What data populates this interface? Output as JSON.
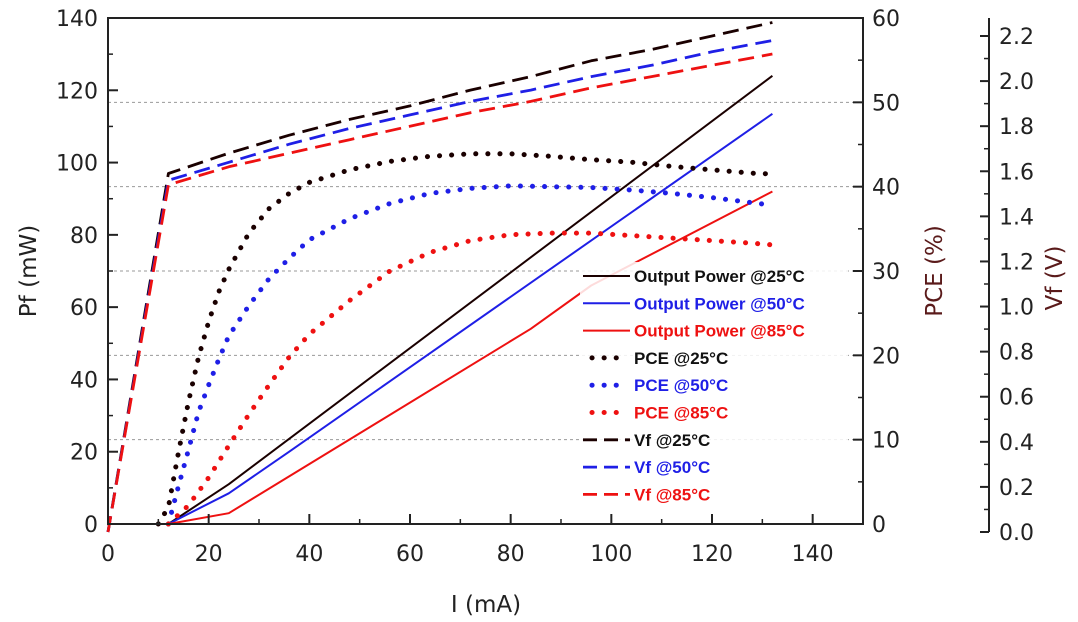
{
  "chart_data": {
    "type": "line",
    "title": "",
    "xlabel": "I (mA)",
    "ylabel": "Pf (mW)",
    "y2label": "PCE (%)",
    "y3label": "Vf (V)",
    "xlim": [
      0,
      150
    ],
    "ylim": [
      0,
      140
    ],
    "y2lim": [
      0,
      60
    ],
    "y3lim": [
      0,
      2.3
    ],
    "x_ticks": [
      0,
      20,
      40,
      60,
      80,
      100,
      120,
      140
    ],
    "y_ticks": [
      0,
      20,
      40,
      60,
      80,
      100,
      120,
      140
    ],
    "y2_ticks": [
      0,
      10,
      20,
      30,
      40,
      50,
      60
    ],
    "y3_ticks": [
      "0.0",
      "0.2",
      "0.4",
      "0.6",
      "0.8",
      "1.0",
      "1.2",
      "1.4",
      "1.6",
      "1.8",
      "2.0",
      "2.2"
    ],
    "grid": "horizontal dotted at right-axis ticks",
    "legend_position": "center-right",
    "colors": {
      "c25": "#1a0000",
      "c50": "#1f1fe6",
      "c85": "#ee1111"
    },
    "series": [
      {
        "name": "Output Power @25°C",
        "axis": "left",
        "style": "solid",
        "color": "#1a0000",
        "x": [
          12,
          24,
          132
        ],
        "y": [
          0,
          11,
          124
        ]
      },
      {
        "name": "Output Power @50°C",
        "axis": "left",
        "style": "solid",
        "color": "#1f1fe6",
        "x": [
          12,
          24,
          36,
          132
        ],
        "y": [
          0,
          8.5,
          20,
          113.5
        ]
      },
      {
        "name": "Output Power @85°C",
        "axis": "left",
        "style": "solid",
        "color": "#ee1111",
        "x": [
          12,
          24,
          84,
          96,
          132
        ],
        "y": [
          0,
          3,
          54,
          66,
          92
        ]
      },
      {
        "name": "PCE @25°C",
        "axis": "right",
        "style": "dotted",
        "color": "#1a0000",
        "x": [
          10,
          12,
          14,
          16,
          18,
          20,
          22,
          24,
          28,
          32,
          36,
          40,
          48,
          56,
          64,
          72,
          80,
          88,
          96,
          104,
          112,
          120,
          128,
          132
        ],
        "y": [
          0,
          2,
          8.5,
          14.5,
          19.8,
          24,
          27.5,
          30.2,
          34.5,
          37.4,
          39.2,
          40.5,
          42,
          43,
          43.6,
          43.9,
          43.9,
          43.6,
          43.2,
          42.9,
          42.4,
          42,
          41.6,
          41.5
        ]
      },
      {
        "name": "PCE @50°C",
        "axis": "right",
        "style": "dotted",
        "color": "#1f1fe6",
        "x": [
          12,
          14,
          16,
          18,
          20,
          22,
          24,
          28,
          32,
          36,
          40,
          48,
          56,
          64,
          72,
          80,
          88,
          96,
          104,
          112,
          120,
          128,
          132
        ],
        "y": [
          0,
          4.5,
          8.8,
          13.3,
          16.5,
          19.5,
          22.3,
          25.9,
          29.1,
          31.5,
          33.7,
          36.2,
          38,
          39.2,
          39.8,
          40.1,
          40,
          39.9,
          39.6,
          39.2,
          38.7,
          38.1,
          37.8
        ]
      },
      {
        "name": "PCE @85°C",
        "axis": "right",
        "style": "dotted",
        "color": "#ee1111",
        "x": [
          12,
          16,
          20,
          24,
          28,
          32,
          36,
          40,
          48,
          56,
          64,
          72,
          80,
          88,
          96,
          104,
          112,
          120,
          128,
          132
        ],
        "y": [
          0,
          2.2,
          5.5,
          9.3,
          13,
          16.5,
          19.8,
          22.5,
          26.5,
          30,
          32.2,
          33.6,
          34.3,
          34.5,
          34.5,
          34.2,
          33.9,
          33.6,
          33.3,
          33.1
        ]
      },
      {
        "name": "Vf @25°C",
        "axis": "third",
        "style": "dashed",
        "color": "#1a0000",
        "x": [
          0,
          12,
          24,
          36,
          48,
          60,
          72,
          84,
          96,
          108,
          120,
          132
        ],
        "y": [
          0,
          1.59,
          1.68,
          1.76,
          1.83,
          1.89,
          1.96,
          2.02,
          2.09,
          2.14,
          2.2,
          2.26
        ]
      },
      {
        "name": "Vf @50°C",
        "axis": "third",
        "style": "dashed",
        "color": "#1f1fe6",
        "x": [
          0,
          12,
          24,
          36,
          48,
          60,
          72,
          84,
          96,
          108,
          120,
          132
        ],
        "y": [
          0,
          1.56,
          1.64,
          1.72,
          1.79,
          1.85,
          1.91,
          1.96,
          2.02,
          2.07,
          2.13,
          2.18
        ]
      },
      {
        "name": "Vf @85°C",
        "axis": "third",
        "style": "dashed",
        "color": "#ee1111",
        "x": [
          0,
          12,
          24,
          36,
          48,
          60,
          72,
          84,
          96,
          108,
          120,
          132
        ],
        "y": [
          0,
          1.54,
          1.62,
          1.68,
          1.74,
          1.8,
          1.86,
          1.91,
          1.97,
          2.02,
          2.07,
          2.12
        ]
      }
    ]
  }
}
